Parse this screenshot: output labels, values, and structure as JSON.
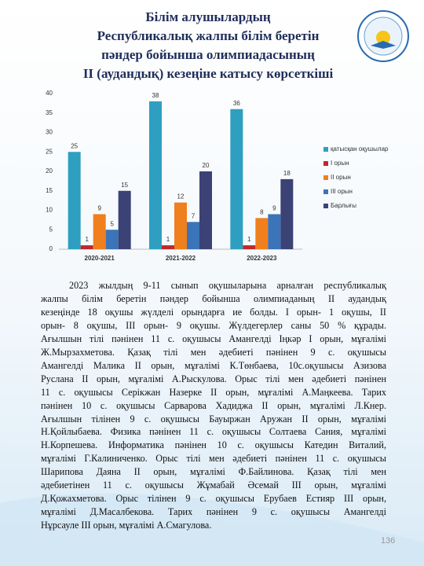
{
  "header": {
    "title_lines": [
      "Білім алушылардың",
      "Республикалық  жалпы білім беретін",
      "пәндер бойынша олимпиадасының",
      "ІІ  (аудандық) кезеңіне катысу көрсеткіші"
    ]
  },
  "chart_data": {
    "type": "bar",
    "categories": [
      "2020-2021",
      "2021-2022",
      "2022-2023"
    ],
    "series": [
      {
        "name": "қатысқан оқушылар",
        "color": "#2e9fc0",
        "values": [
          25,
          38,
          36
        ]
      },
      {
        "name": "I орын",
        "color": "#c0282b",
        "values": [
          1,
          1,
          1
        ]
      },
      {
        "name": "II орын",
        "color": "#f07f1e",
        "values": [
          9,
          12,
          8
        ]
      },
      {
        "name": "III орын",
        "color": "#3b74b8",
        "values": [
          5,
          7,
          9
        ]
      },
      {
        "name": "Барлығы",
        "color": "#3b4275",
        "values": [
          15,
          20,
          18
        ]
      }
    ],
    "ylim": [
      0,
      40
    ],
    "yticks": [
      0,
      5,
      10,
      15,
      20,
      25,
      30,
      35,
      40
    ],
    "grid": false,
    "legend": "right"
  },
  "body": {
    "lines": [
      "2023 жылдың 9-11 сынып оқушыларына арналған республикалық",
      "жалпы білім беретін пәндер бойынша олимпиаданың ІІ аудандық",
      "кезеңінде 18 оқушы жүлделі орындарға ие болды. І орын- 1 оқушы, ІІ",
      "орын- 8 оқушы, ІІІ орын- 9 оқушы. Жүлдегерлер саны  50 % құрады.",
      "Ағылшын тілі пәнінен 11 с. оқушысы Амангелді Іңкәр І орын, мұғалімі",
      "Ж.Мырзахметова. Қазақ тілі мен әдебиеті пәнінен  9 с. оқушысы",
      "Амангелді Малика ІІ орын, мұғалімі К.Төнбаева, 10с.оқушысы Азизова",
      "Руслана ІІ орын, мұғалімі А.Рыскулова. Орыс тілі мен әдебиеті пәнінен",
      "11 с. оқушысы Серікжан Назерке ІІ орын, мұғалімі А.Маңкеева. Тарих",
      "пәнінен 10 с. оқушысы Сарварова Хадиджа ІІ орын, мұғалімі Л.Кнер.",
      "Ағылшын тілінен 9 с. оқушысы Бауыржан Аружан ІІ орын, мұғалімі",
      "Н.Қойлыбаева. Физика пәнінен 11 с. оқушысы Солтаева Сания, мұғалімі",
      "Н.Корпешева. Информатика пәнінен 10 с. оқушысы Катедин Виталий,",
      "мұғалімі Г.Калиниченко. Орыс тілі мен әдебиеті пәнінен 11 с. оқушысы",
      "Шарипова Даяна ІІ орын, мұғалімі Ф.Байлинова. Қазақ тілі мен",
      "әдебиетінен 11 с. оқушысы Жұмабай Әсемай ІІІ орын, мұғалімі",
      "Д.Қожахметова. Орыс тілінен 9 с. оқушысы Ерубаев Естияр ІІІ орын,",
      "мұғалімі Д.Масалбекова. Тарих пәнінен 9 с. оқушысы Амангелді",
      "Нұрсауле ІІІ орын, мұғалімі А.Смагулова."
    ]
  },
  "page_number": "136"
}
